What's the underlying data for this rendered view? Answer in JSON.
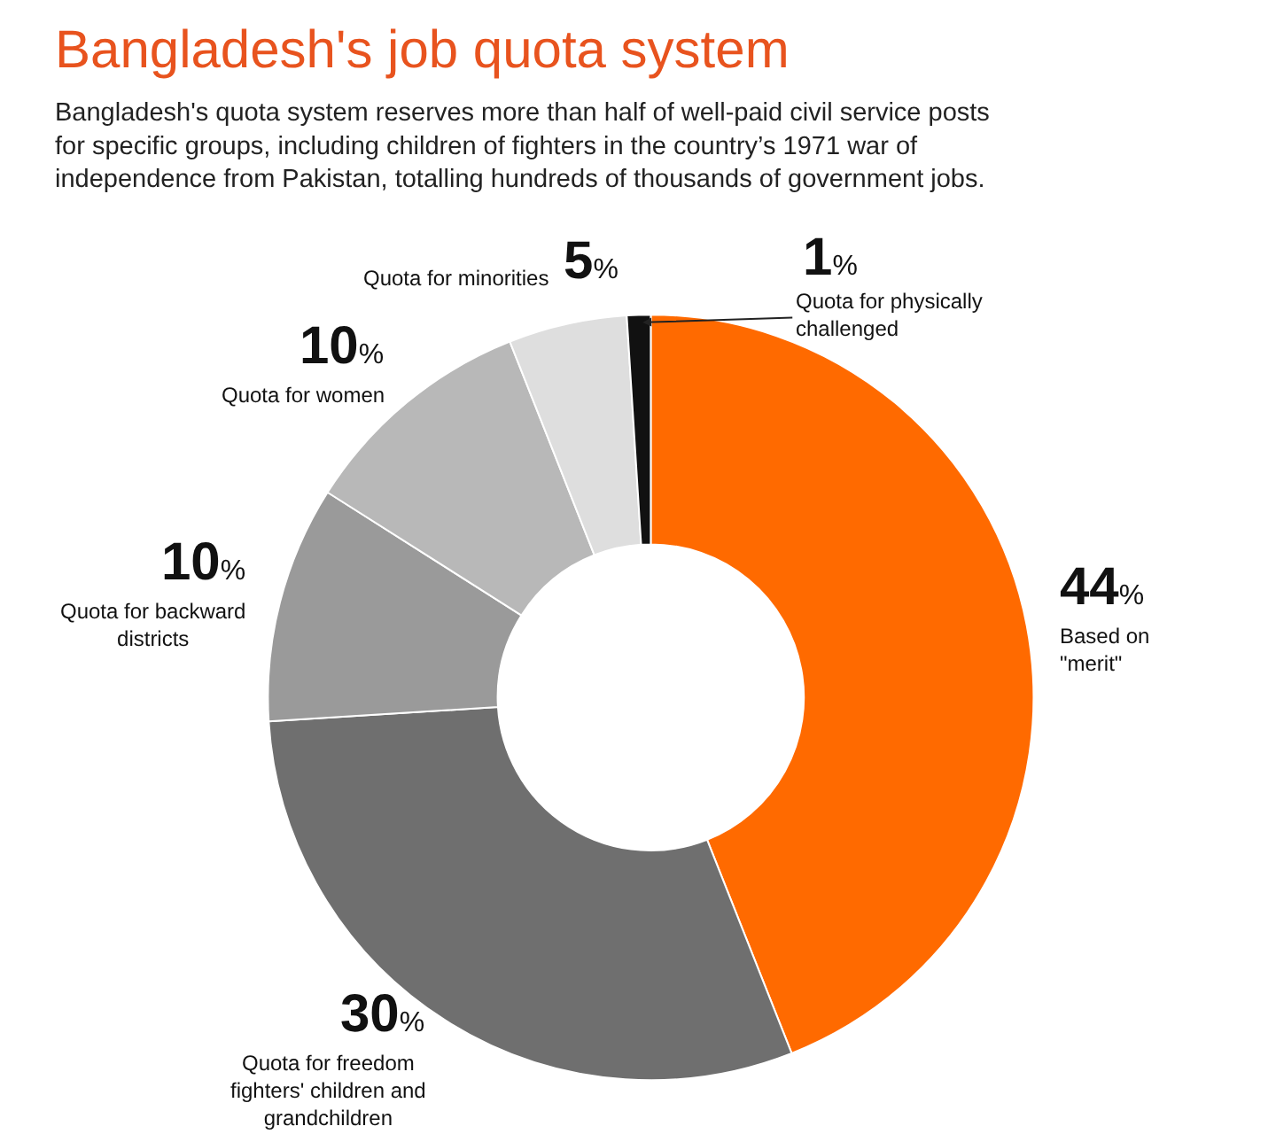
{
  "chart_data": {
    "type": "donut",
    "title": "Bangladesh's job quota system",
    "subtitle": "Bangladesh's quota system reserves more than half of well-paid civil service posts for specific groups, including children of fighters in the country’s 1971 war of independence from Pakistan, totalling hundreds of thousands of government jobs.",
    "categories": [
      "Based on \"merit\"",
      "Quota for freedom fighters' children and grandchildren",
      "Quota for backward districts",
      "Quota for women",
      "Quota for minorities",
      "Quota for physically challenged"
    ],
    "values": [
      44,
      30,
      10,
      10,
      5,
      1
    ],
    "colors": [
      "#ff6a00",
      "#6f6f6f",
      "#9a9a9a",
      "#b8b8b8",
      "#dedede",
      "#111111"
    ],
    "value_labels": [
      "44%",
      "30%",
      "10%",
      "10%",
      "5%",
      "1%"
    ],
    "legend": false
  }
}
